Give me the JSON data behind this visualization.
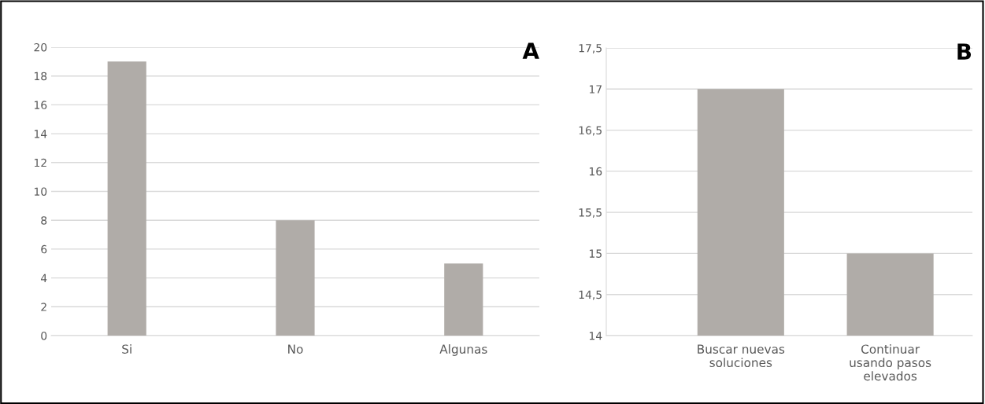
{
  "chart_data": [
    {
      "type": "bar",
      "title": "A",
      "categories": [
        "Si",
        "No",
        "Algunas"
      ],
      "values": [
        19,
        8,
        5
      ],
      "color": "#b0aca8",
      "ylim": [
        0,
        20
      ],
      "yticks": [
        0,
        2,
        4,
        6,
        8,
        10,
        12,
        14,
        16,
        18,
        20
      ],
      "grid": "y",
      "legend": false
    },
    {
      "type": "bar",
      "title": "B",
      "categories": [
        "Buscar nuevas\nsoluciones",
        "Continuar\nusando pasos\nelevados"
      ],
      "values": [
        17,
        15
      ],
      "color": "#b0aca8",
      "ylim": [
        14,
        17.5
      ],
      "yticks": [
        14,
        {
          "value": 14.5,
          "label": "14,5"
        },
        15,
        {
          "value": 15.5,
          "label": "15,5"
        },
        16,
        {
          "value": 16.5,
          "label": "16,5"
        },
        17,
        {
          "value": 17.5,
          "label": "17,5"
        }
      ],
      "grid": "y",
      "legend": false
    }
  ]
}
